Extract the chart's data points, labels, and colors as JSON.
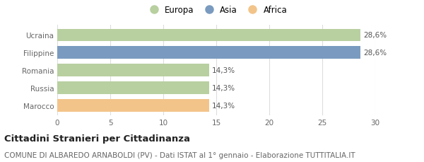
{
  "categories": [
    "Marocco",
    "Russia",
    "Romania",
    "Filippine",
    "Ucraina"
  ],
  "values": [
    14.3,
    14.3,
    14.3,
    28.6,
    28.6
  ],
  "bar_colors": [
    "#f2c48a",
    "#b8cfa0",
    "#b8cfa0",
    "#7a9bbf",
    "#b8cfa0"
  ],
  "bar_labels": [
    "14,3%",
    "14,3%",
    "14,3%",
    "28,6%",
    "28,6%"
  ],
  "legend_items": [
    {
      "label": "Europa",
      "color": "#b8cfa0"
    },
    {
      "label": "Asia",
      "color": "#7a9bbf"
    },
    {
      "label": "Africa",
      "color": "#f2c48a"
    }
  ],
  "xlim": [
    0,
    30
  ],
  "xticks": [
    0,
    5,
    10,
    15,
    20,
    25,
    30
  ],
  "title": "Cittadini Stranieri per Cittadinanza",
  "subtitle": "COMUNE DI ALBAREDO ARNABOLDI (PV) - Dati ISTAT al 1° gennaio - Elaborazione TUTTITALIA.IT",
  "title_fontsize": 9.5,
  "subtitle_fontsize": 7.5,
  "label_fontsize": 7.5,
  "tick_fontsize": 7.5,
  "legend_fontsize": 8.5,
  "bar_height": 0.72,
  "background_color": "#ffffff",
  "grid_color": "#dddddd",
  "text_color": "#666666",
  "label_color": "#555555"
}
